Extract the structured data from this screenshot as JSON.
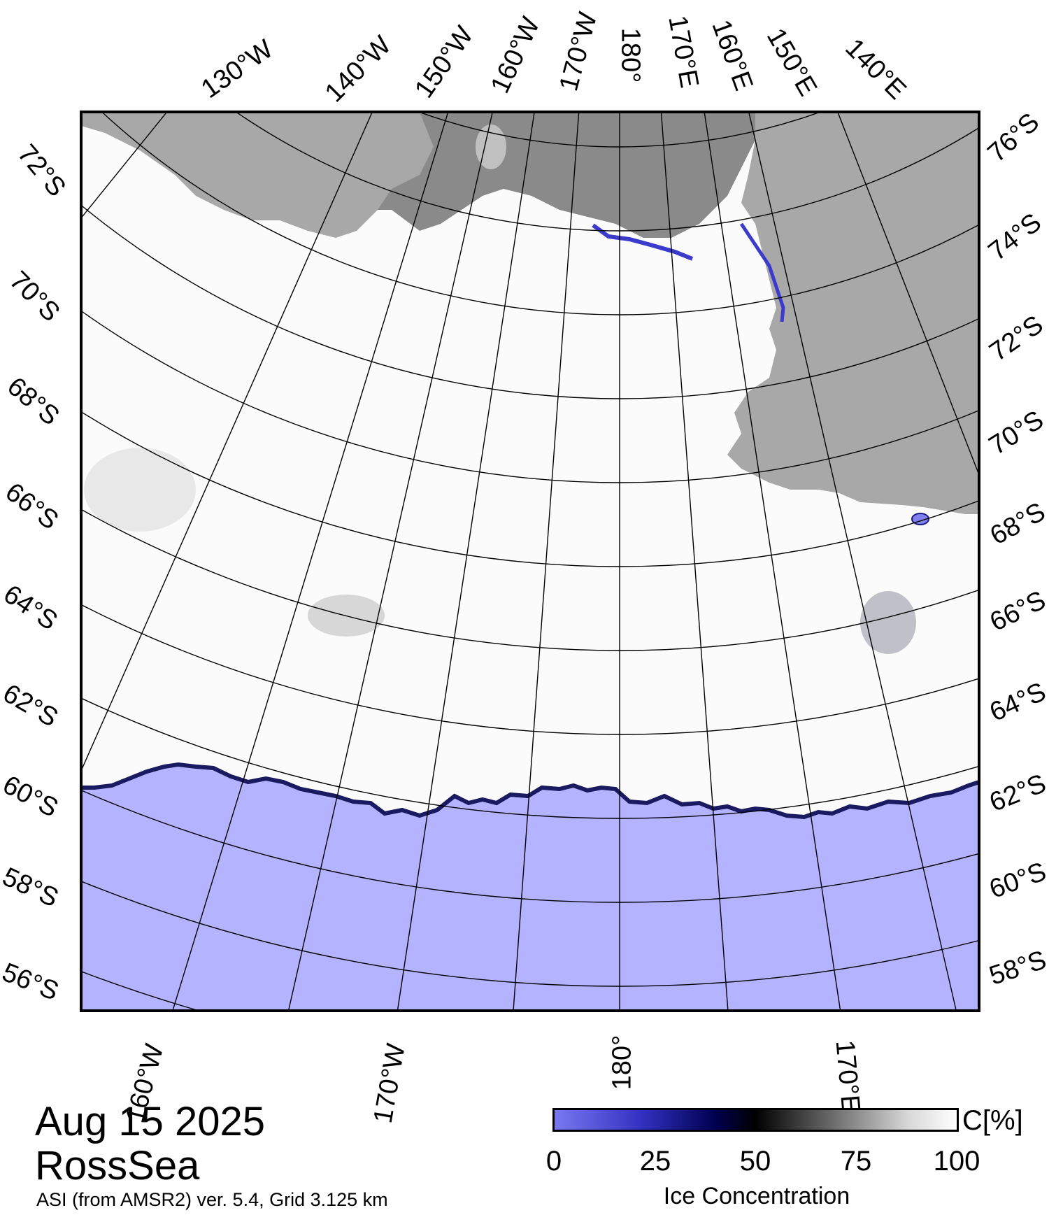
{
  "title": {
    "date": "Aug 15 2025",
    "region": "RossSea",
    "subtitle": "ASI (from AMSR2) ver. 5.4,  Grid 3.125 km"
  },
  "colorbar": {
    "unit": "C[%]",
    "title": "Ice Concentration",
    "ticks": [
      "0",
      "25",
      "50",
      "75",
      "100"
    ],
    "colors": [
      "#7878f0",
      "#3030c0",
      "#000050",
      "#000000",
      "#707070",
      "#d8d8d8",
      "#ffffff"
    ]
  },
  "graticule": {
    "top_lon_labels": [
      "130°W",
      "140°W",
      "150°W",
      "160°W",
      "170°W",
      "180°",
      "170°E",
      "160°E",
      "150°E",
      "140°E"
    ],
    "bottom_lon_labels": [
      "160°W",
      "170°W",
      "180°",
      "170°E"
    ],
    "left_lat_labels": [
      "72°S",
      "70°S",
      "68°S",
      "66°S",
      "64°S",
      "62°S",
      "60°S",
      "58°S",
      "56°S"
    ],
    "right_lat_labels": [
      "76°S",
      "74°S",
      "72°S",
      "70°S",
      "68°S",
      "66°S",
      "64°S",
      "62°S",
      "60°S",
      "58°S"
    ]
  },
  "map_colors": {
    "open_water": "#b3b3ff",
    "sea_ice": "#ffffff",
    "land": "#a8a8a8",
    "ice_shelf": "#8a8a8a",
    "frame": "#000000"
  }
}
